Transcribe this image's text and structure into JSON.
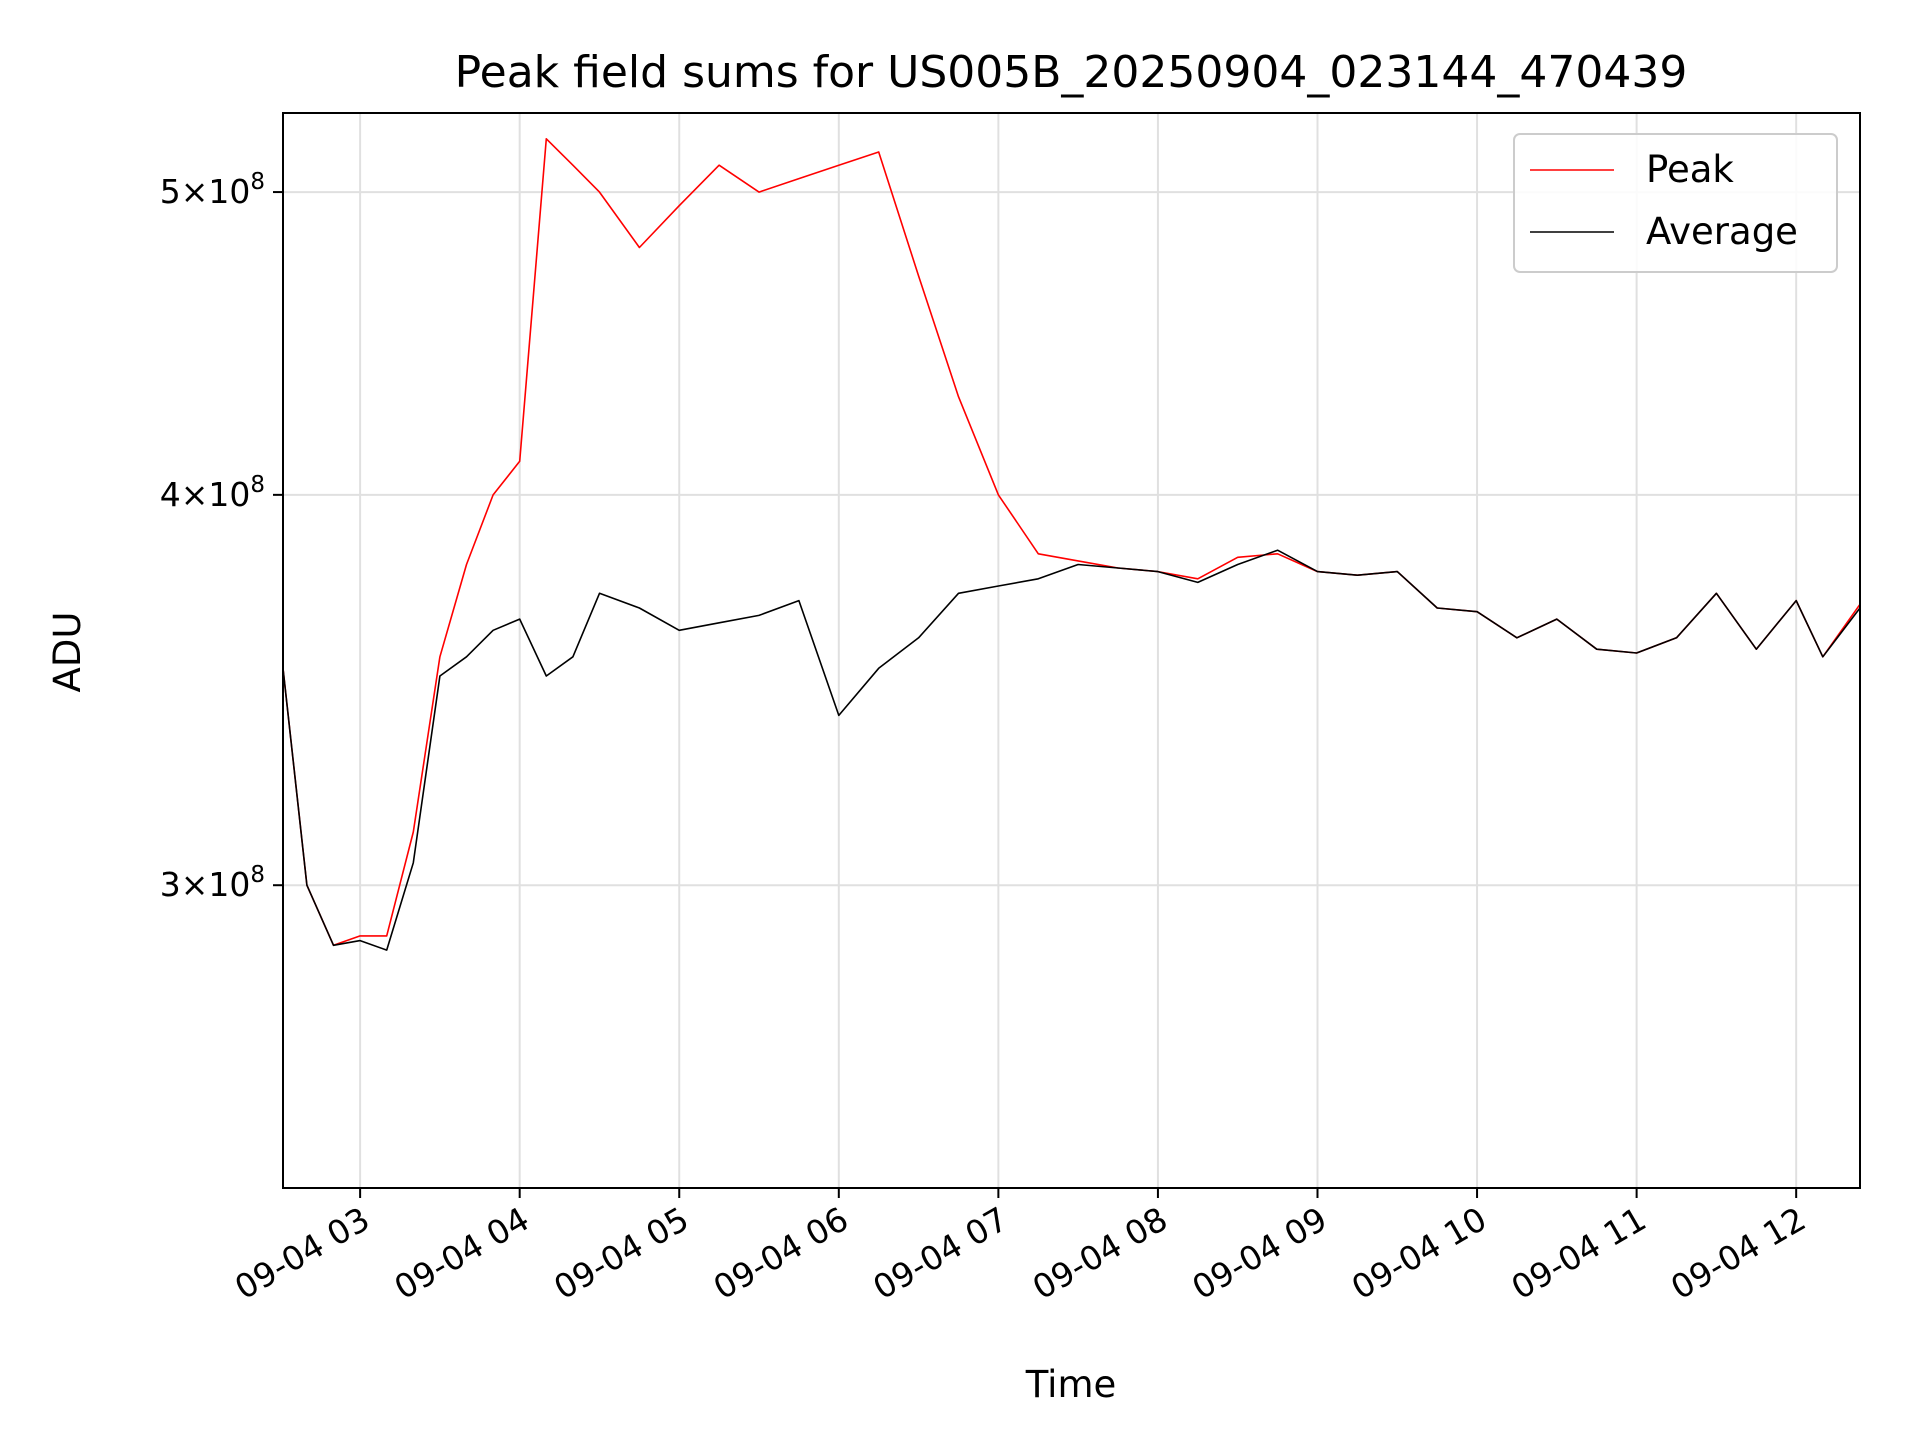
{
  "chart_data": {
    "type": "line",
    "title": "Peak field sums for US005B_20250904_023144_470439",
    "xlabel": "Time",
    "ylabel": "ADU",
    "y_scale": "log",
    "ylim": [
      240000000,
      530000000
    ],
    "xlim": [
      "2025-09-04 02:31",
      "2025-09-04 12:24"
    ],
    "grid": true,
    "legend_position": "top-right",
    "x_ticks": [
      {
        "label": "09-04 03",
        "time": "2025-09-04 03:00"
      },
      {
        "label": "09-04 04",
        "time": "2025-09-04 04:00"
      },
      {
        "label": "09-04 05",
        "time": "2025-09-04 05:00"
      },
      {
        "label": "09-04 06",
        "time": "2025-09-04 06:00"
      },
      {
        "label": "09-04 07",
        "time": "2025-09-04 07:00"
      },
      {
        "label": "09-04 08",
        "time": "2025-09-04 08:00"
      },
      {
        "label": "09-04 09",
        "time": "2025-09-04 09:00"
      },
      {
        "label": "09-04 10",
        "time": "2025-09-04 10:00"
      },
      {
        "label": "09-04 11",
        "time": "2025-09-04 11:00"
      },
      {
        "label": "09-04 12",
        "time": "2025-09-04 12:00"
      }
    ],
    "y_ticks": [
      {
        "coef": "3",
        "exp": "8",
        "value": 300000000
      },
      {
        "coef": "4",
        "exp": "8",
        "value": 400000000
      },
      {
        "coef": "5",
        "exp": "8",
        "value": 500000000
      }
    ],
    "series": [
      {
        "name": "Peak",
        "color": "#ff0000",
        "x": [
          "2025-09-04 02:31",
          "2025-09-04 02:40",
          "2025-09-04 02:50",
          "2025-09-04 03:00",
          "2025-09-04 03:10",
          "2025-09-04 03:20",
          "2025-09-04 03:30",
          "2025-09-04 03:40",
          "2025-09-04 03:50",
          "2025-09-04 04:00",
          "2025-09-04 04:10",
          "2025-09-04 04:20",
          "2025-09-04 04:30",
          "2025-09-04 04:45",
          "2025-09-04 05:00",
          "2025-09-04 05:15",
          "2025-09-04 05:30",
          "2025-09-04 05:45",
          "2025-09-04 06:00",
          "2025-09-04 06:15",
          "2025-09-04 06:30",
          "2025-09-04 06:45",
          "2025-09-04 07:00",
          "2025-09-04 07:15",
          "2025-09-04 07:30",
          "2025-09-04 07:45",
          "2025-09-04 08:00",
          "2025-09-04 08:15",
          "2025-09-04 08:30",
          "2025-09-04 08:45",
          "2025-09-04 09:00",
          "2025-09-04 09:15",
          "2025-09-04 09:30",
          "2025-09-04 09:45",
          "2025-09-04 10:00",
          "2025-09-04 10:15",
          "2025-09-04 10:30",
          "2025-09-04 10:45",
          "2025-09-04 11:00",
          "2025-09-04 11:15",
          "2025-09-04 11:30",
          "2025-09-04 11:45",
          "2025-09-04 12:00",
          "2025-09-04 12:10",
          "2025-09-04 12:24"
        ],
        "values": [
          352000000,
          300000000,
          287000000,
          289000000,
          289000000,
          312000000,
          355000000,
          380000000,
          400000000,
          410000000,
          520000000,
          510000000,
          500000000,
          480000000,
          495000000,
          510000000,
          500000000,
          505000000,
          510000000,
          515000000,
          470000000,
          430000000,
          400000000,
          383000000,
          381000000,
          379000000,
          378000000,
          376000000,
          382000000,
          383000000,
          378000000,
          377000000,
          378000000,
          368000000,
          367000000,
          360000000,
          365000000,
          357000000,
          356000000,
          360000000,
          372000000,
          357000000,
          370000000,
          355000000,
          369000000
        ]
      },
      {
        "name": "Average",
        "color": "#000000",
        "x": [
          "2025-09-04 02:31",
          "2025-09-04 02:40",
          "2025-09-04 02:50",
          "2025-09-04 03:00",
          "2025-09-04 03:10",
          "2025-09-04 03:20",
          "2025-09-04 03:30",
          "2025-09-04 03:40",
          "2025-09-04 03:50",
          "2025-09-04 04:00",
          "2025-09-04 04:10",
          "2025-09-04 04:20",
          "2025-09-04 04:30",
          "2025-09-04 04:45",
          "2025-09-04 05:00",
          "2025-09-04 05:15",
          "2025-09-04 05:30",
          "2025-09-04 05:45",
          "2025-09-04 06:00",
          "2025-09-04 06:15",
          "2025-09-04 06:30",
          "2025-09-04 06:45",
          "2025-09-04 07:00",
          "2025-09-04 07:15",
          "2025-09-04 07:30",
          "2025-09-04 07:45",
          "2025-09-04 08:00",
          "2025-09-04 08:15",
          "2025-09-04 08:30",
          "2025-09-04 08:45",
          "2025-09-04 09:00",
          "2025-09-04 09:15",
          "2025-09-04 09:30",
          "2025-09-04 09:45",
          "2025-09-04 10:00",
          "2025-09-04 10:15",
          "2025-09-04 10:30",
          "2025-09-04 10:45",
          "2025-09-04 11:00",
          "2025-09-04 11:15",
          "2025-09-04 11:30",
          "2025-09-04 11:45",
          "2025-09-04 12:00",
          "2025-09-04 12:10",
          "2025-09-04 12:24"
        ],
        "values": [
          352000000,
          300000000,
          287000000,
          288000000,
          286000000,
          305000000,
          350000000,
          355000000,
          362000000,
          365000000,
          350000000,
          355000000,
          372000000,
          368000000,
          362000000,
          364000000,
          366000000,
          370000000,
          340000000,
          352000000,
          360000000,
          372000000,
          374000000,
          376000000,
          380000000,
          379000000,
          378000000,
          375000000,
          380000000,
          384000000,
          378000000,
          377000000,
          378000000,
          368000000,
          367000000,
          360000000,
          365000000,
          357000000,
          356000000,
          360000000,
          372000000,
          357000000,
          370000000,
          355000000,
          368000000
        ]
      }
    ]
  }
}
